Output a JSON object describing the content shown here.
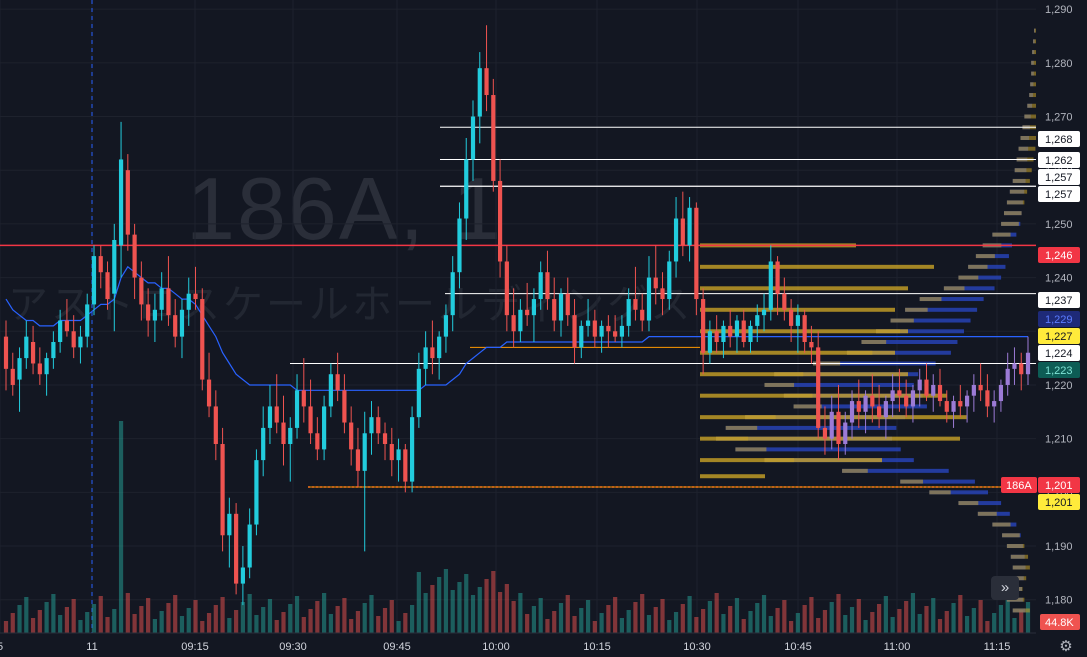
{
  "watermark": {
    "symbol": "186A, 1",
    "company": "アストロスケールホールディングス"
  },
  "colors": {
    "up": "#26a69a",
    "up_bright": "#22ccdd",
    "down": "#ef5350",
    "vwap": "#2962ff",
    "profile_gold": "#c9a227",
    "profile_blue": "#2a48c8",
    "hline_red": "#f23645",
    "hline_white": "#ffffff",
    "hline_orange": "#ff9800",
    "badge_yellow": "#ffeb3b",
    "badge_teal": "#1fb5a3"
  },
  "chart_data": {
    "type": "candlestick",
    "symbol": "186A",
    "interval": "1",
    "y_axis": {
      "ylim": [
        1173.8,
        1291.7
      ],
      "ticks": [
        1180,
        1190,
        1200,
        1210,
        1220,
        1230,
        1240,
        1250,
        1260,
        1270,
        1280,
        1290
      ],
      "tick_labels": [
        "1,180",
        "1,190",
        "1,200",
        "1,210",
        "1,220",
        "1,230",
        "1,240",
        "1,250",
        "1,260",
        "1,270",
        "1,280",
        "1,290"
      ]
    },
    "x_axis": {
      "tick_labels": [
        "5",
        "11",
        "09:15",
        "09:30",
        "09:45",
        "10:00",
        "10:15",
        "10:30",
        "10:45",
        "11:00",
        "11:15"
      ]
    },
    "ohlc": [
      [
        1229,
        1232,
        1219,
        1223
      ],
      [
        1223,
        1226,
        1218,
        1220
      ],
      [
        1221,
        1227,
        1215,
        1225
      ],
      [
        1225,
        1232,
        1223,
        1229
      ],
      [
        1228,
        1231,
        1222,
        1224
      ],
      [
        1224,
        1227,
        1220,
        1222
      ],
      [
        1222,
        1226,
        1218,
        1225
      ],
      [
        1225,
        1230,
        1223,
        1228
      ],
      [
        1228,
        1234,
        1226,
        1232
      ],
      [
        1232,
        1236,
        1229,
        1230
      ],
      [
        1230,
        1233,
        1225,
        1227
      ],
      [
        1227,
        1231,
        1224,
        1229
      ],
      [
        1229,
        1237,
        1227,
        1235
      ],
      [
        1235,
        1246,
        1233,
        1244
      ],
      [
        1244,
        1246,
        1238,
        1241
      ],
      [
        1241,
        1243,
        1234,
        1236
      ],
      [
        1237,
        1250,
        1230,
        1247
      ],
      [
        1246,
        1269,
        1240,
        1262
      ],
      [
        1260,
        1263,
        1245,
        1248
      ],
      [
        1248,
        1250,
        1236,
        1240
      ],
      [
        1240,
        1243,
        1232,
        1235
      ],
      [
        1235,
        1238,
        1229,
        1232
      ],
      [
        1232,
        1237,
        1228,
        1234
      ],
      [
        1234,
        1241,
        1232,
        1238
      ],
      [
        1238,
        1244,
        1231,
        1233
      ],
      [
        1233,
        1236,
        1227,
        1229
      ],
      [
        1229,
        1236,
        1225,
        1234
      ],
      [
        1234,
        1240,
        1231,
        1237
      ],
      [
        1237,
        1242,
        1234,
        1236
      ],
      [
        1236,
        1238,
        1219,
        1221
      ],
      [
        1221,
        1226,
        1214,
        1216
      ],
      [
        1216,
        1219,
        1206,
        1209
      ],
      [
        1209,
        1212,
        1189,
        1192
      ],
      [
        1192,
        1199,
        1186,
        1196
      ],
      [
        1196,
        1198,
        1181,
        1183
      ],
      [
        1183,
        1190,
        1179,
        1186
      ],
      [
        1186,
        1197,
        1184,
        1194
      ],
      [
        1194,
        1208,
        1192,
        1206
      ],
      [
        1206,
        1216,
        1203,
        1212
      ],
      [
        1212,
        1220,
        1209,
        1216
      ],
      [
        1216,
        1222,
        1211,
        1213
      ],
      [
        1213,
        1218,
        1205,
        1209
      ],
      [
        1209,
        1214,
        1202,
        1212
      ],
      [
        1212,
        1222,
        1210,
        1219
      ],
      [
        1219,
        1225,
        1213,
        1216
      ],
      [
        1216,
        1221,
        1209,
        1211
      ],
      [
        1211,
        1214,
        1206,
        1208
      ],
      [
        1208,
        1218,
        1206,
        1216
      ],
      [
        1216,
        1224,
        1214,
        1222
      ],
      [
        1222,
        1226,
        1217,
        1219
      ],
      [
        1219,
        1222,
        1211,
        1213
      ],
      [
        1213,
        1216,
        1205,
        1208
      ],
      [
        1208,
        1212,
        1201,
        1204
      ],
      [
        1204,
        1215,
        1189,
        1211
      ],
      [
        1211,
        1217,
        1207,
        1214
      ],
      [
        1214,
        1216,
        1209,
        1211
      ],
      [
        1211,
        1213,
        1206,
        1209
      ],
      [
        1209,
        1212,
        1203,
        1206
      ],
      [
        1206,
        1210,
        1202,
        1208
      ],
      [
        1208,
        1209,
        1200,
        1202
      ],
      [
        1202,
        1216,
        1200,
        1214
      ],
      [
        1214,
        1226,
        1212,
        1223
      ],
      [
        1223,
        1230,
        1220,
        1227
      ],
      [
        1227,
        1232,
        1222,
        1225
      ],
      [
        1225,
        1230,
        1221,
        1229
      ],
      [
        1229,
        1235,
        1226,
        1233
      ],
      [
        1233,
        1244,
        1230,
        1241
      ],
      [
        1241,
        1254,
        1238,
        1251
      ],
      [
        1251,
        1266,
        1247,
        1262
      ],
      [
        1262,
        1273,
        1258,
        1270
      ],
      [
        1270,
        1282,
        1265,
        1279
      ],
      [
        1279,
        1287,
        1271,
        1274
      ],
      [
        1274,
        1277,
        1256,
        1258
      ],
      [
        1258,
        1262,
        1240,
        1243
      ],
      [
        1243,
        1246,
        1230,
        1233
      ],
      [
        1233,
        1238,
        1227,
        1230
      ],
      [
        1230,
        1236,
        1228,
        1234
      ],
      [
        1234,
        1239,
        1231,
        1233
      ],
      [
        1233,
        1238,
        1228,
        1236
      ],
      [
        1236,
        1243,
        1234,
        1241
      ],
      [
        1241,
        1245,
        1234,
        1236
      ],
      [
        1236,
        1240,
        1230,
        1232
      ],
      [
        1232,
        1238,
        1229,
        1237
      ],
      [
        1237,
        1240,
        1231,
        1233
      ],
      [
        1233,
        1236,
        1224,
        1227
      ],
      [
        1227,
        1232,
        1225,
        1231
      ],
      [
        1231,
        1236,
        1229,
        1232
      ],
      [
        1232,
        1234,
        1227,
        1229
      ],
      [
        1229,
        1232,
        1226,
        1231
      ],
      [
        1231,
        1233,
        1227,
        1230
      ],
      [
        1230,
        1233,
        1228,
        1229
      ],
      [
        1229,
        1233,
        1227,
        1231
      ],
      [
        1231,
        1238,
        1229,
        1236
      ],
      [
        1236,
        1242,
        1232,
        1234
      ],
      [
        1234,
        1237,
        1230,
        1232
      ],
      [
        1232,
        1244,
        1230,
        1240
      ],
      [
        1240,
        1246,
        1235,
        1238
      ],
      [
        1238,
        1241,
        1233,
        1236
      ],
      [
        1236,
        1245,
        1234,
        1243
      ],
      [
        1243,
        1255,
        1240,
        1251
      ],
      [
        1251,
        1256,
        1244,
        1246
      ],
      [
        1246,
        1255,
        1243,
        1253
      ],
      [
        1253,
        1254,
        1233,
        1236
      ],
      [
        1236,
        1238,
        1222,
        1226
      ],
      [
        1226,
        1232,
        1224,
        1230
      ],
      [
        1230,
        1233,
        1226,
        1228
      ],
      [
        1228,
        1232,
        1225,
        1231
      ],
      [
        1231,
        1234,
        1227,
        1229
      ],
      [
        1229,
        1233,
        1226,
        1232
      ],
      [
        1232,
        1234,
        1227,
        1228
      ],
      [
        1228,
        1232,
        1226,
        1231
      ],
      [
        1231,
        1235,
        1228,
        1233
      ],
      [
        1233,
        1237,
        1230,
        1234
      ],
      [
        1234,
        1246,
        1232,
        1243
      ],
      [
        1243,
        1244,
        1233,
        1237
      ],
      [
        1237,
        1240,
        1232,
        1234
      ],
      [
        1234,
        1236,
        1228,
        1231
      ],
      [
        1231,
        1235,
        1226,
        1233
      ],
      [
        1233,
        1234,
        1226,
        1228
      ],
      [
        1228,
        1231,
        1224,
        1227
      ],
      [
        1227,
        1230,
        1210,
        1212
      ],
      [
        1212,
        1216,
        1207,
        1210
      ],
      [
        1210,
        1218,
        1208,
        1215
      ],
      [
        1215,
        1220,
        1206,
        1209
      ],
      [
        1209,
        1215,
        1207,
        1213
      ],
      [
        1213,
        1219,
        1210,
        1217
      ],
      [
        1217,
        1221,
        1212,
        1215
      ],
      [
        1215,
        1219,
        1211,
        1218
      ],
      [
        1218,
        1222,
        1213,
        1216
      ],
      [
        1216,
        1220,
        1212,
        1214
      ],
      [
        1214,
        1218,
        1210,
        1217
      ],
      [
        1217,
        1222,
        1214,
        1219
      ],
      [
        1219,
        1223,
        1215,
        1218
      ],
      [
        1218,
        1221,
        1214,
        1216
      ],
      [
        1216,
        1220,
        1213,
        1219
      ],
      [
        1219,
        1223,
        1216,
        1221
      ],
      [
        1221,
        1224,
        1217,
        1218
      ],
      [
        1218,
        1222,
        1215,
        1220
      ],
      [
        1220,
        1223,
        1216,
        1217
      ],
      [
        1217,
        1219,
        1213,
        1215
      ],
      [
        1215,
        1218,
        1212,
        1217
      ],
      [
        1217,
        1220,
        1214,
        1216
      ],
      [
        1216,
        1219,
        1213,
        1218
      ],
      [
        1218,
        1222,
        1215,
        1220
      ],
      [
        1220,
        1224,
        1217,
        1219
      ],
      [
        1219,
        1222,
        1214,
        1216
      ],
      [
        1216,
        1219,
        1213,
        1217
      ],
      [
        1217,
        1221,
        1215,
        1220
      ],
      [
        1220,
        1226,
        1218,
        1223
      ],
      [
        1223,
        1227,
        1220,
        1224
      ],
      [
        1224,
        1226,
        1219,
        1222
      ],
      [
        1222,
        1229,
        1220,
        1226
      ]
    ],
    "volume_label": "44.8K",
    "vwap": [
      1236,
      1234,
      1233,
      1232,
      1232,
      1231,
      1231,
      1231,
      1232,
      1232,
      1232,
      1232,
      1233,
      1234,
      1235,
      1235,
      1236,
      1240,
      1242,
      1241,
      1240,
      1239,
      1239,
      1238,
      1238,
      1237,
      1236,
      1236,
      1235,
      1233,
      1231,
      1229,
      1226,
      1224,
      1222,
      1221,
      1220,
      1220,
      1220,
      1220,
      1220,
      1220,
      1220,
      1219,
      1219,
      1219,
      1219,
      1219,
      1219,
      1219,
      1219,
      1219,
      1219,
      1219,
      1219,
      1219,
      1219,
      1219,
      1219,
      1219,
      1219,
      1219,
      1220,
      1220,
      1220,
      1220,
      1221,
      1222,
      1224,
      1225,
      1226,
      1227,
      1227,
      1227,
      1228,
      1228,
      1228,
      1228,
      1228,
      1228,
      1228,
      1228,
      1228,
      1228,
      1228,
      1228,
      1228,
      1228,
      1228,
      1228,
      1228,
      1228,
      1228,
      1228,
      1228,
      1229,
      1229,
      1229,
      1229,
      1229,
      1229,
      1229,
      1229,
      1229,
      1229,
      1229,
      1229,
      1229,
      1229,
      1229,
      1229,
      1229,
      1229,
      1229,
      1229,
      1229,
      1229,
      1229,
      1229,
      1229,
      1229,
      1229,
      1229,
      1229,
      1229,
      1229,
      1229,
      1229,
      1229,
      1229,
      1229,
      1229,
      1229,
      1229,
      1229,
      1229,
      1229,
      1229,
      1229,
      1229,
      1229,
      1229,
      1229,
      1229,
      1229,
      1229,
      1229,
      1229,
      1229,
      1229,
      1229,
      1229
    ],
    "horizontal_levels": [
      {
        "value": 1268,
        "label": "1,268",
        "color": "white"
      },
      {
        "value": 1262,
        "label": "1,262",
        "color": "white"
      },
      {
        "value": 1257,
        "label": "1,257",
        "color": "white"
      },
      {
        "value": 1257,
        "label": "1,257",
        "color": "white"
      },
      {
        "value": 1246,
        "label": "1,246",
        "color": "red"
      },
      {
        "value": 1237,
        "label": "1,237",
        "color": "white"
      },
      {
        "value": 1229,
        "label": "1,229",
        "color": "blue"
      },
      {
        "value": 1227,
        "label": "1,227",
        "color": "yellow"
      },
      {
        "value": 1224,
        "label": "1,224",
        "color": "white"
      },
      {
        "value": 1223,
        "label": "1,223",
        "color": "teal"
      },
      {
        "value": 1201,
        "label": "1,201",
        "color": "red"
      },
      {
        "value": 1201,
        "label": "1,201",
        "color": "yellow"
      }
    ],
    "current_price": {
      "symbol_badge": "186A",
      "value": 1201,
      "label": "1,201"
    },
    "volume_profile_visible_range": [
      [
        1286,
        2
      ],
      [
        1284,
        3
      ],
      [
        1282,
        4
      ],
      [
        1280,
        5
      ],
      [
        1278,
        5
      ],
      [
        1276,
        6
      ],
      [
        1274,
        7
      ],
      [
        1272,
        9
      ],
      [
        1270,
        12
      ],
      [
        1268,
        14
      ],
      [
        1266,
        16
      ],
      [
        1264,
        18
      ],
      [
        1262,
        20
      ],
      [
        1260,
        22
      ],
      [
        1258,
        24
      ],
      [
        1256,
        27
      ],
      [
        1254,
        30
      ],
      [
        1252,
        33
      ],
      [
        1250,
        36
      ],
      [
        1248,
        45
      ],
      [
        1246,
        55
      ],
      [
        1244,
        62
      ],
      [
        1242,
        70
      ],
      [
        1240,
        80
      ],
      [
        1238,
        95
      ],
      [
        1236,
        120
      ],
      [
        1234,
        135
      ],
      [
        1232,
        150
      ],
      [
        1230,
        165
      ],
      [
        1228,
        180
      ],
      [
        1226,
        195
      ],
      [
        1224,
        230
      ],
      [
        1222,
        270
      ],
      [
        1220,
        280
      ],
      [
        1218,
        260
      ],
      [
        1216,
        250
      ],
      [
        1214,
        300
      ],
      [
        1212,
        320
      ],
      [
        1210,
        330
      ],
      [
        1208,
        310
      ],
      [
        1206,
        280
      ],
      [
        1204,
        200
      ],
      [
        1202,
        140
      ],
      [
        1200,
        110
      ],
      [
        1198,
        80
      ],
      [
        1196,
        60
      ],
      [
        1194,
        45
      ],
      [
        1192,
        35
      ],
      [
        1190,
        30
      ],
      [
        1188,
        26
      ],
      [
        1186,
        24
      ],
      [
        1184,
        28
      ],
      [
        1182,
        32
      ],
      [
        1180,
        30
      ],
      [
        1178,
        24
      ]
    ],
    "volume_profile_session": [
      [
        1246,
        120
      ],
      [
        1242,
        180
      ],
      [
        1238,
        160
      ],
      [
        1234,
        150
      ],
      [
        1230,
        160
      ],
      [
        1226,
        150
      ],
      [
        1222,
        160
      ],
      [
        1218,
        190
      ],
      [
        1214,
        205
      ],
      [
        1210,
        200
      ],
      [
        1206,
        140
      ],
      [
        1203,
        50
      ]
    ]
  }
}
